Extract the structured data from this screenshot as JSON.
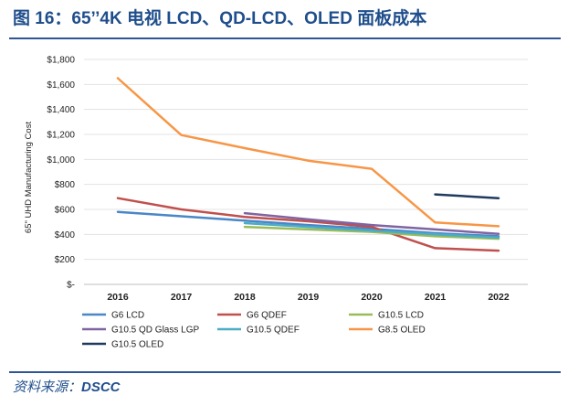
{
  "title": "图 16：65’’4K 电视 LCD、QD-LCD、OLED 面板成本",
  "source": {
    "label": "资料来源：",
    "value": "DSCC"
  },
  "chart_data": {
    "type": "line",
    "title": "",
    "xlabel": "",
    "ylabel": "65\" UHD Manufacturing Cost",
    "categories": [
      "2016",
      "2017",
      "2018",
      "2019",
      "2020",
      "2021",
      "2022"
    ],
    "ylim": [
      0,
      1800
    ],
    "yticks": [
      0,
      200,
      400,
      600,
      800,
      1000,
      1200,
      1400,
      1600,
      1800
    ],
    "ytick_labels": [
      "$-",
      "$200",
      "$400",
      "$600",
      "$800",
      "$1,000",
      "$1,200",
      "$1,400",
      "$1,600",
      "$1,800"
    ],
    "grid": true,
    "legend_position": "bottom",
    "series": [
      {
        "name": "G6 LCD",
        "color": "#4a86c8",
        "values": [
          580,
          545,
          510,
          475,
          445,
          410,
          385
        ]
      },
      {
        "name": "G6 QDEF",
        "color": "#c0504d",
        "values": [
          690,
          600,
          540,
          505,
          460,
          290,
          270
        ]
      },
      {
        "name": "G10.5 LCD",
        "color": "#9bbb59",
        "values": [
          null,
          null,
          460,
          440,
          420,
          385,
          365
        ]
      },
      {
        "name": "G10.5 QD Glass LGP",
        "color": "#8064a2",
        "values": [
          null,
          null,
          570,
          520,
          475,
          440,
          405
        ]
      },
      {
        "name": "G10.5 QDEF",
        "color": "#4bacc6",
        "values": [
          null,
          null,
          490,
          460,
          430,
          400,
          375
        ]
      },
      {
        "name": "G8.5 OLED",
        "color": "#f79646",
        "values": [
          1650,
          1195,
          1090,
          990,
          925,
          495,
          465
        ]
      },
      {
        "name": "G10.5 OLED",
        "color": "#1f3a5f",
        "values": [
          null,
          null,
          null,
          null,
          null,
          720,
          690
        ]
      }
    ]
  }
}
